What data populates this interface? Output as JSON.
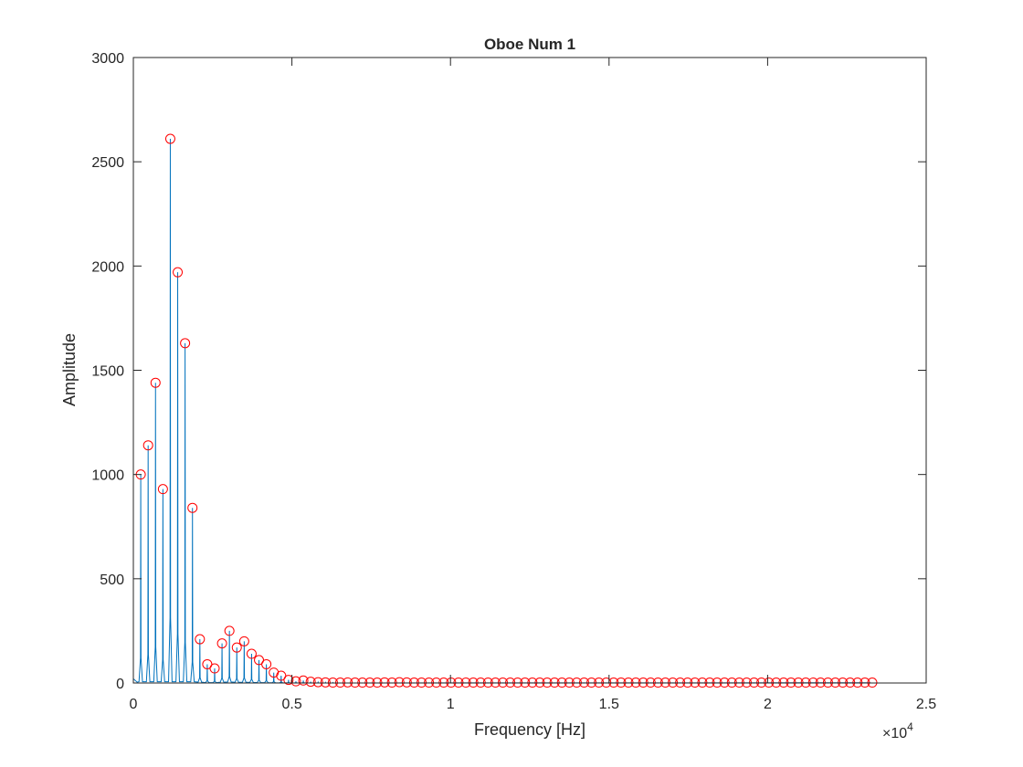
{
  "chart_data": {
    "type": "line",
    "title": "Oboe Num 1",
    "xlabel": "Frequency [Hz]",
    "ylabel": "Amplitude",
    "xlim": [
      0,
      25000
    ],
    "ylim": [
      0,
      3000
    ],
    "x_exponent_label": "×10",
    "x_exponent_power": "4",
    "x_ticks": [
      0,
      5000,
      10000,
      15000,
      20000,
      25000
    ],
    "x_tick_labels": [
      "0",
      "0.5",
      "1",
      "1.5",
      "2",
      "2.5"
    ],
    "y_ticks": [
      0,
      500,
      1000,
      1500,
      2000,
      2500,
      3000
    ],
    "y_tick_labels": [
      "0",
      "500",
      "1000",
      "1500",
      "2000",
      "2500",
      "3000"
    ],
    "grid": false,
    "legend": "none",
    "series": [
      {
        "kind": "spectrum-line",
        "color": "#0072BD",
        "x": [
          233,
          466,
          699,
          932,
          1165,
          1398,
          1631,
          1864,
          2097,
          2330,
          2563,
          2796,
          3029,
          3262,
          3495,
          3728,
          3961,
          4194,
          4427,
          4660,
          4893,
          5126,
          5359,
          5592,
          5825,
          6058,
          6291
        ],
        "values": [
          1000,
          1140,
          1440,
          930,
          2610,
          1970,
          1630,
          840,
          210,
          90,
          70,
          190,
          250,
          170,
          200,
          140,
          110,
          90,
          50,
          35,
          15,
          8,
          12,
          6,
          4,
          3,
          2
        ]
      },
      {
        "kind": "peak-markers",
        "color": "#FF0000",
        "marker": "open-circle",
        "x": [
          233,
          466,
          699,
          932,
          1165,
          1398,
          1631,
          1864,
          2097,
          2330,
          2563,
          2796,
          3029,
          3262,
          3495,
          3728,
          3961,
          4194,
          4427,
          4660,
          4893,
          5126,
          5359,
          5592,
          5825,
          6058,
          6291,
          6524,
          6757,
          6990,
          7223,
          7456,
          7689,
          7922,
          8155,
          8388,
          8621,
          8854,
          9087,
          9320,
          9553,
          9786,
          10019,
          10252,
          10485,
          10718,
          10951,
          11184,
          11417,
          11650,
          11883,
          12116,
          12349,
          12582,
          12815,
          13048,
          13281,
          13514,
          13747,
          13980,
          14213,
          14446,
          14679,
          14912,
          15145,
          15378,
          15611,
          15844,
          16077,
          16310,
          16543,
          16776,
          17009,
          17242,
          17475,
          17708,
          17941,
          18174,
          18407,
          18640,
          18873,
          19106,
          19339,
          19572,
          19805,
          20038,
          20271,
          20504,
          20737,
          20970,
          21203,
          21436,
          21669,
          21902,
          22135,
          22368,
          22601,
          22834,
          23067,
          23300
        ],
        "values": [
          1000,
          1140,
          1440,
          930,
          2610,
          1970,
          1630,
          840,
          210,
          90,
          70,
          190,
          250,
          170,
          200,
          140,
          110,
          90,
          50,
          35,
          15,
          8,
          12,
          6,
          4,
          3,
          2,
          2,
          3,
          2,
          2,
          2,
          2,
          3,
          2,
          4,
          3,
          2,
          2,
          2,
          2,
          2,
          2,
          2,
          2,
          2,
          2,
          2,
          2,
          2,
          2,
          2,
          2,
          2,
          2,
          2,
          2,
          2,
          2,
          2,
          2,
          2,
          2,
          2,
          2,
          2,
          2,
          2,
          2,
          2,
          2,
          2,
          2,
          2,
          2,
          2,
          2,
          2,
          2,
          2,
          2,
          2,
          2,
          2,
          2,
          2,
          2,
          2,
          2,
          2,
          2,
          2,
          2,
          2,
          2,
          2,
          2,
          2,
          2,
          2
        ]
      }
    ]
  }
}
